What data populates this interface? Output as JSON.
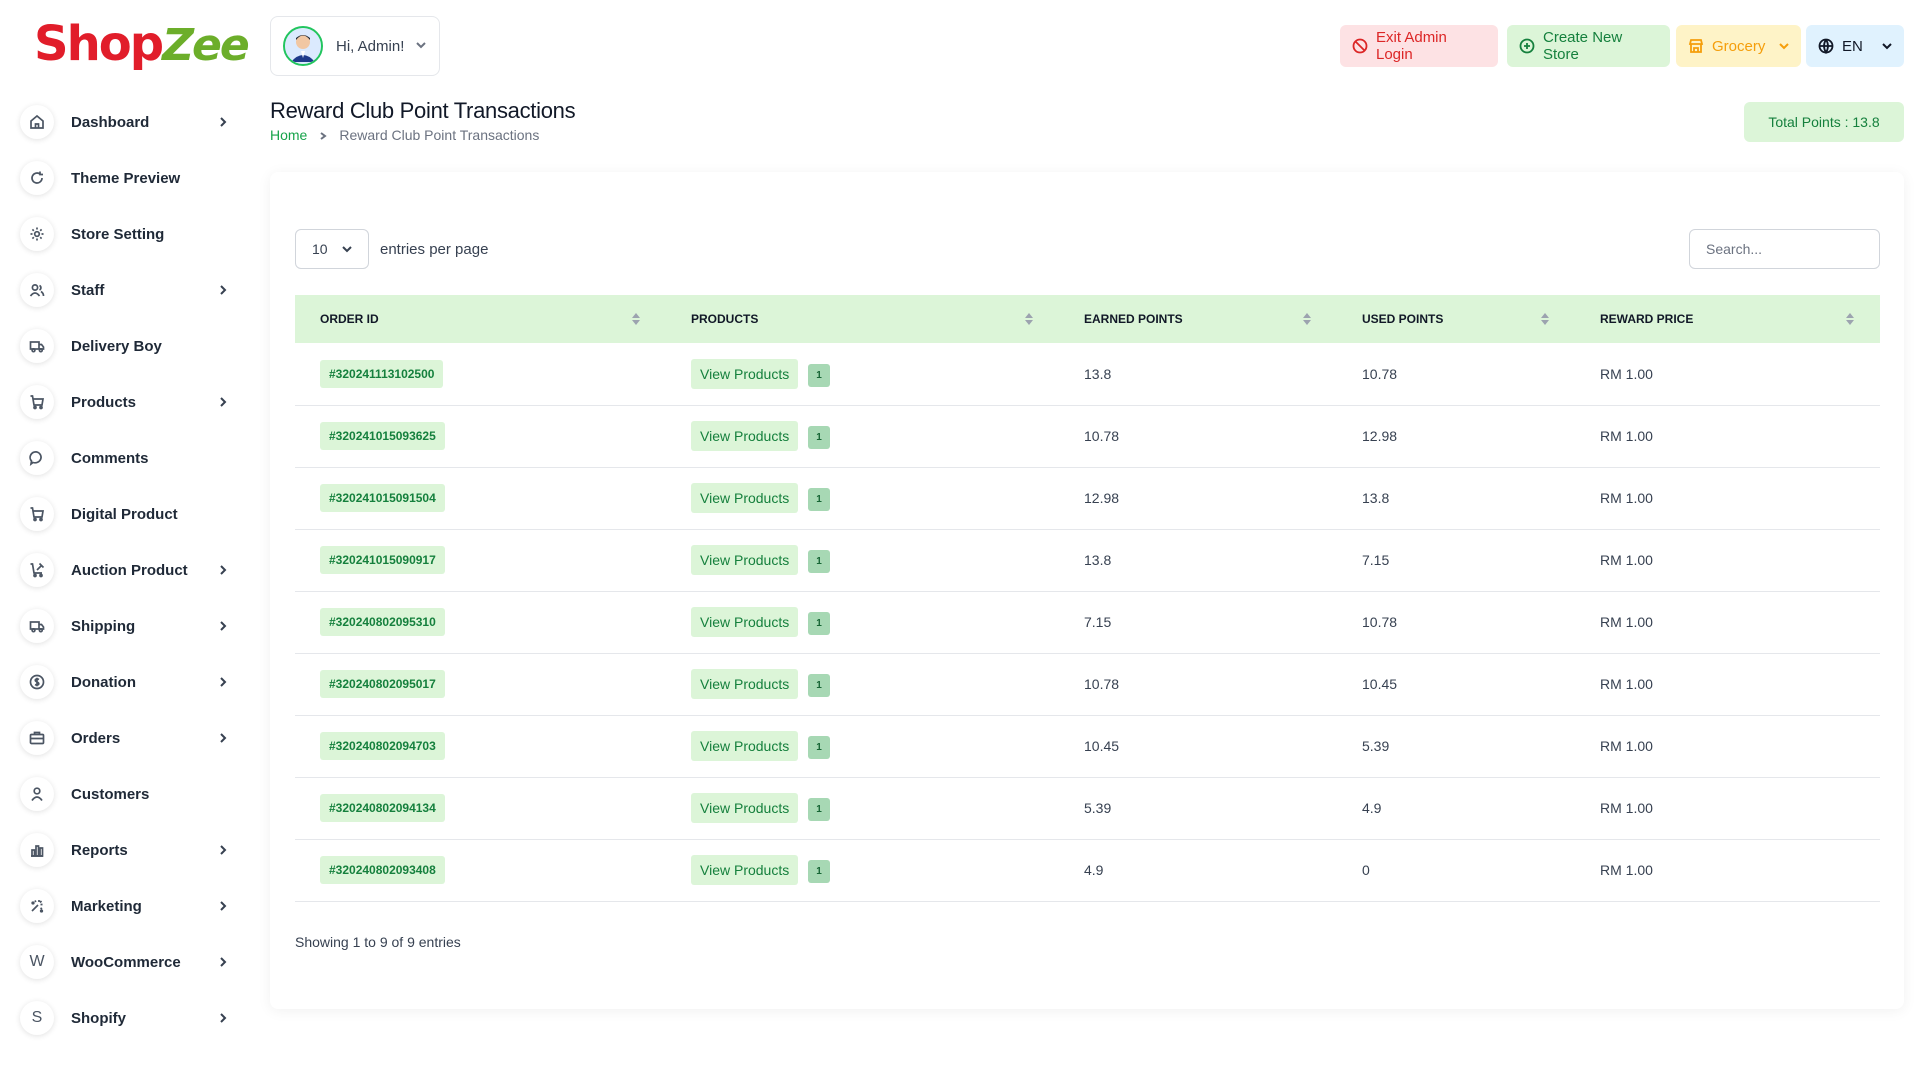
{
  "brand": {
    "part1": "Shop",
    "part2": "Zee"
  },
  "sidebar": {
    "items": [
      {
        "label": "Dashboard",
        "icon": "home-icon",
        "has_children": true
      },
      {
        "label": "Theme Preview",
        "icon": "refresh-icon",
        "has_children": false
      },
      {
        "label": "Store Setting",
        "icon": "gear-icon",
        "has_children": false
      },
      {
        "label": "Staff",
        "icon": "users-icon",
        "has_children": true
      },
      {
        "label": "Delivery Boy",
        "icon": "truck-icon",
        "has_children": false
      },
      {
        "label": "Products",
        "icon": "cart-icon",
        "has_children": true
      },
      {
        "label": "Comments",
        "icon": "chat-icon",
        "has_children": false
      },
      {
        "label": "Digital Product",
        "icon": "cart-icon",
        "has_children": false
      },
      {
        "label": "Auction Product",
        "icon": "cart-gavel-icon",
        "has_children": true
      },
      {
        "label": "Shipping",
        "icon": "truck-icon",
        "has_children": true
      },
      {
        "label": "Donation",
        "icon": "dollar-icon",
        "has_children": true
      },
      {
        "label": "Orders",
        "icon": "briefcase-icon",
        "has_children": true
      },
      {
        "label": "Customers",
        "icon": "user-icon",
        "has_children": false
      },
      {
        "label": "Reports",
        "icon": "chart-icon",
        "has_children": true
      },
      {
        "label": "Marketing",
        "icon": "sparkle-icon",
        "has_children": true
      },
      {
        "label": "WooCommerce",
        "icon": "woocommerce-icon",
        "has_children": true
      },
      {
        "label": "Shopify",
        "icon": "shopify-icon",
        "has_children": true
      }
    ]
  },
  "header": {
    "greeting": "Hi, Admin!",
    "exit_admin": "Exit Admin Login",
    "create_store": "Create New Store",
    "store_name": "Grocery",
    "language": "EN"
  },
  "page": {
    "title": "Reward Club Point Transactions",
    "breadcrumb_home": "Home",
    "breadcrumb_current": "Reward Club Point Transactions",
    "total_points": "Total Points : 13.8"
  },
  "table_controls": {
    "per_page": "10",
    "per_page_label": "entries per page",
    "search_placeholder": "Search..."
  },
  "table": {
    "columns": [
      "ORDER ID",
      "PRODUCTS",
      "EARNED POINTS",
      "USED POINTS",
      "REWARD PRICE"
    ],
    "view_label": "View Products",
    "rows": [
      {
        "order_id": "#320241113102500",
        "count": "1",
        "earned": "13.8",
        "used": "10.78",
        "price": "RM 1.00"
      },
      {
        "order_id": "#320241015093625",
        "count": "1",
        "earned": "10.78",
        "used": "12.98",
        "price": "RM 1.00"
      },
      {
        "order_id": "#320241015091504",
        "count": "1",
        "earned": "12.98",
        "used": "13.8",
        "price": "RM 1.00"
      },
      {
        "order_id": "#320241015090917",
        "count": "1",
        "earned": "13.8",
        "used": "7.15",
        "price": "RM 1.00"
      },
      {
        "order_id": "#320240802095310",
        "count": "1",
        "earned": "7.15",
        "used": "10.78",
        "price": "RM 1.00"
      },
      {
        "order_id": "#320240802095017",
        "count": "1",
        "earned": "10.78",
        "used": "10.45",
        "price": "RM 1.00"
      },
      {
        "order_id": "#320240802094703",
        "count": "1",
        "earned": "10.45",
        "used": "5.39",
        "price": "RM 1.00"
      },
      {
        "order_id": "#320240802094134",
        "count": "1",
        "earned": "5.39",
        "used": "4.9",
        "price": "RM 1.00"
      },
      {
        "order_id": "#320240802093408",
        "count": "1",
        "earned": "4.9",
        "used": "0",
        "price": "RM 1.00"
      }
    ],
    "footer": "Showing 1 to 9 of 9 entries"
  },
  "colors": {
    "accent_green": "#15803d",
    "accent_green_bg": "#dcf5d8",
    "danger": "#dc2626",
    "warning": "#f59e0b",
    "brand_red": "#e11d2a",
    "brand_green": "#6cae2a"
  }
}
